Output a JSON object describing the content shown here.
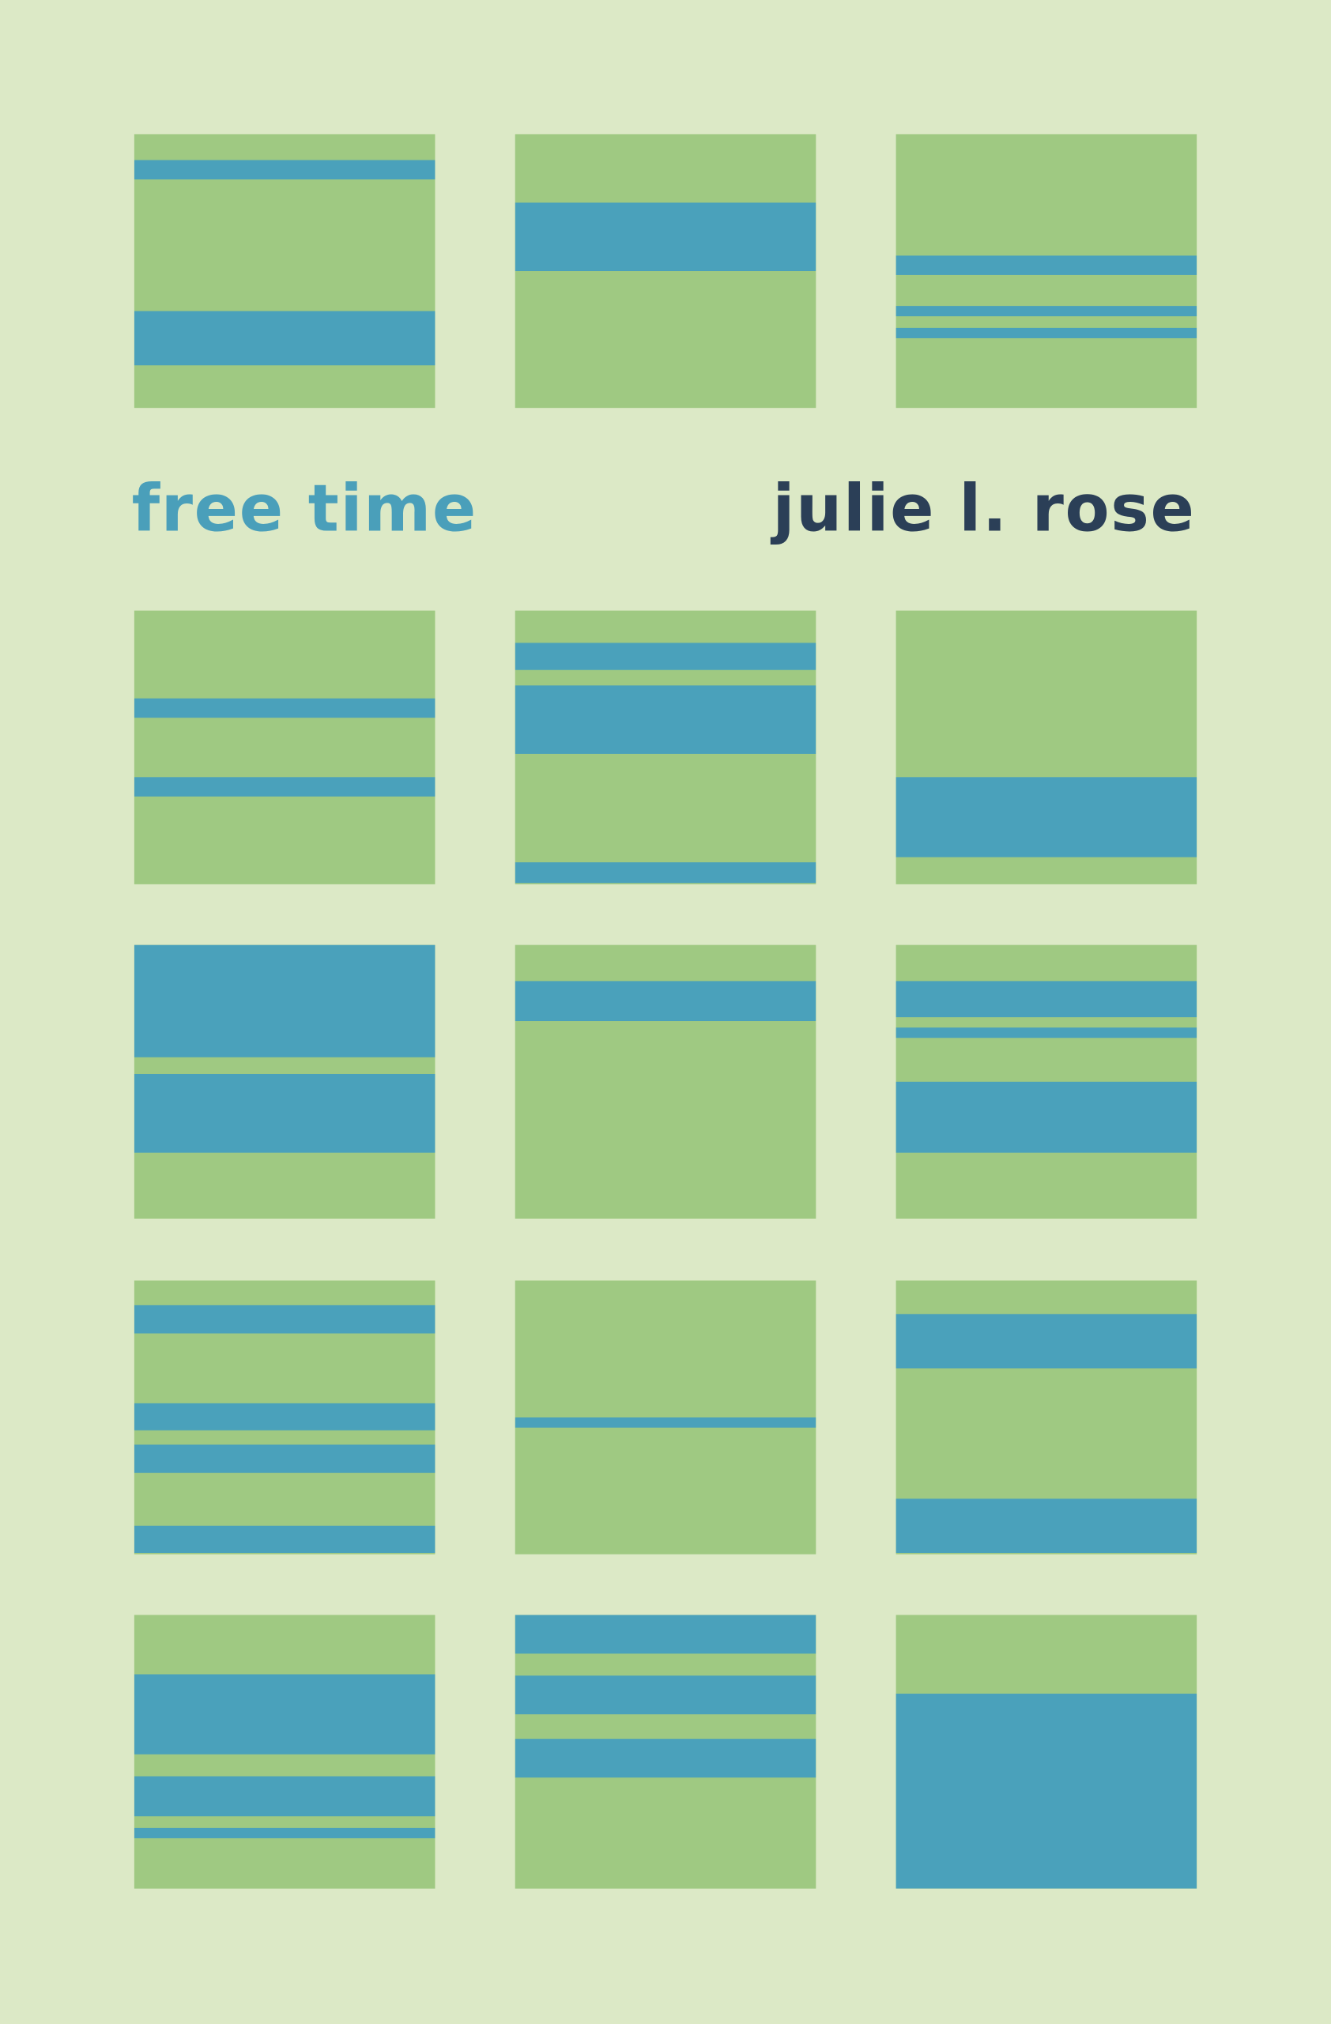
{
  "cover": {
    "title": "free time",
    "author": "julie l. rose",
    "colors": {
      "background": "#dce9c6",
      "square": "#9fc982",
      "stripe": "#4aa1bb",
      "title": "#4a9fba",
      "author": "#2b3f57"
    }
  }
}
